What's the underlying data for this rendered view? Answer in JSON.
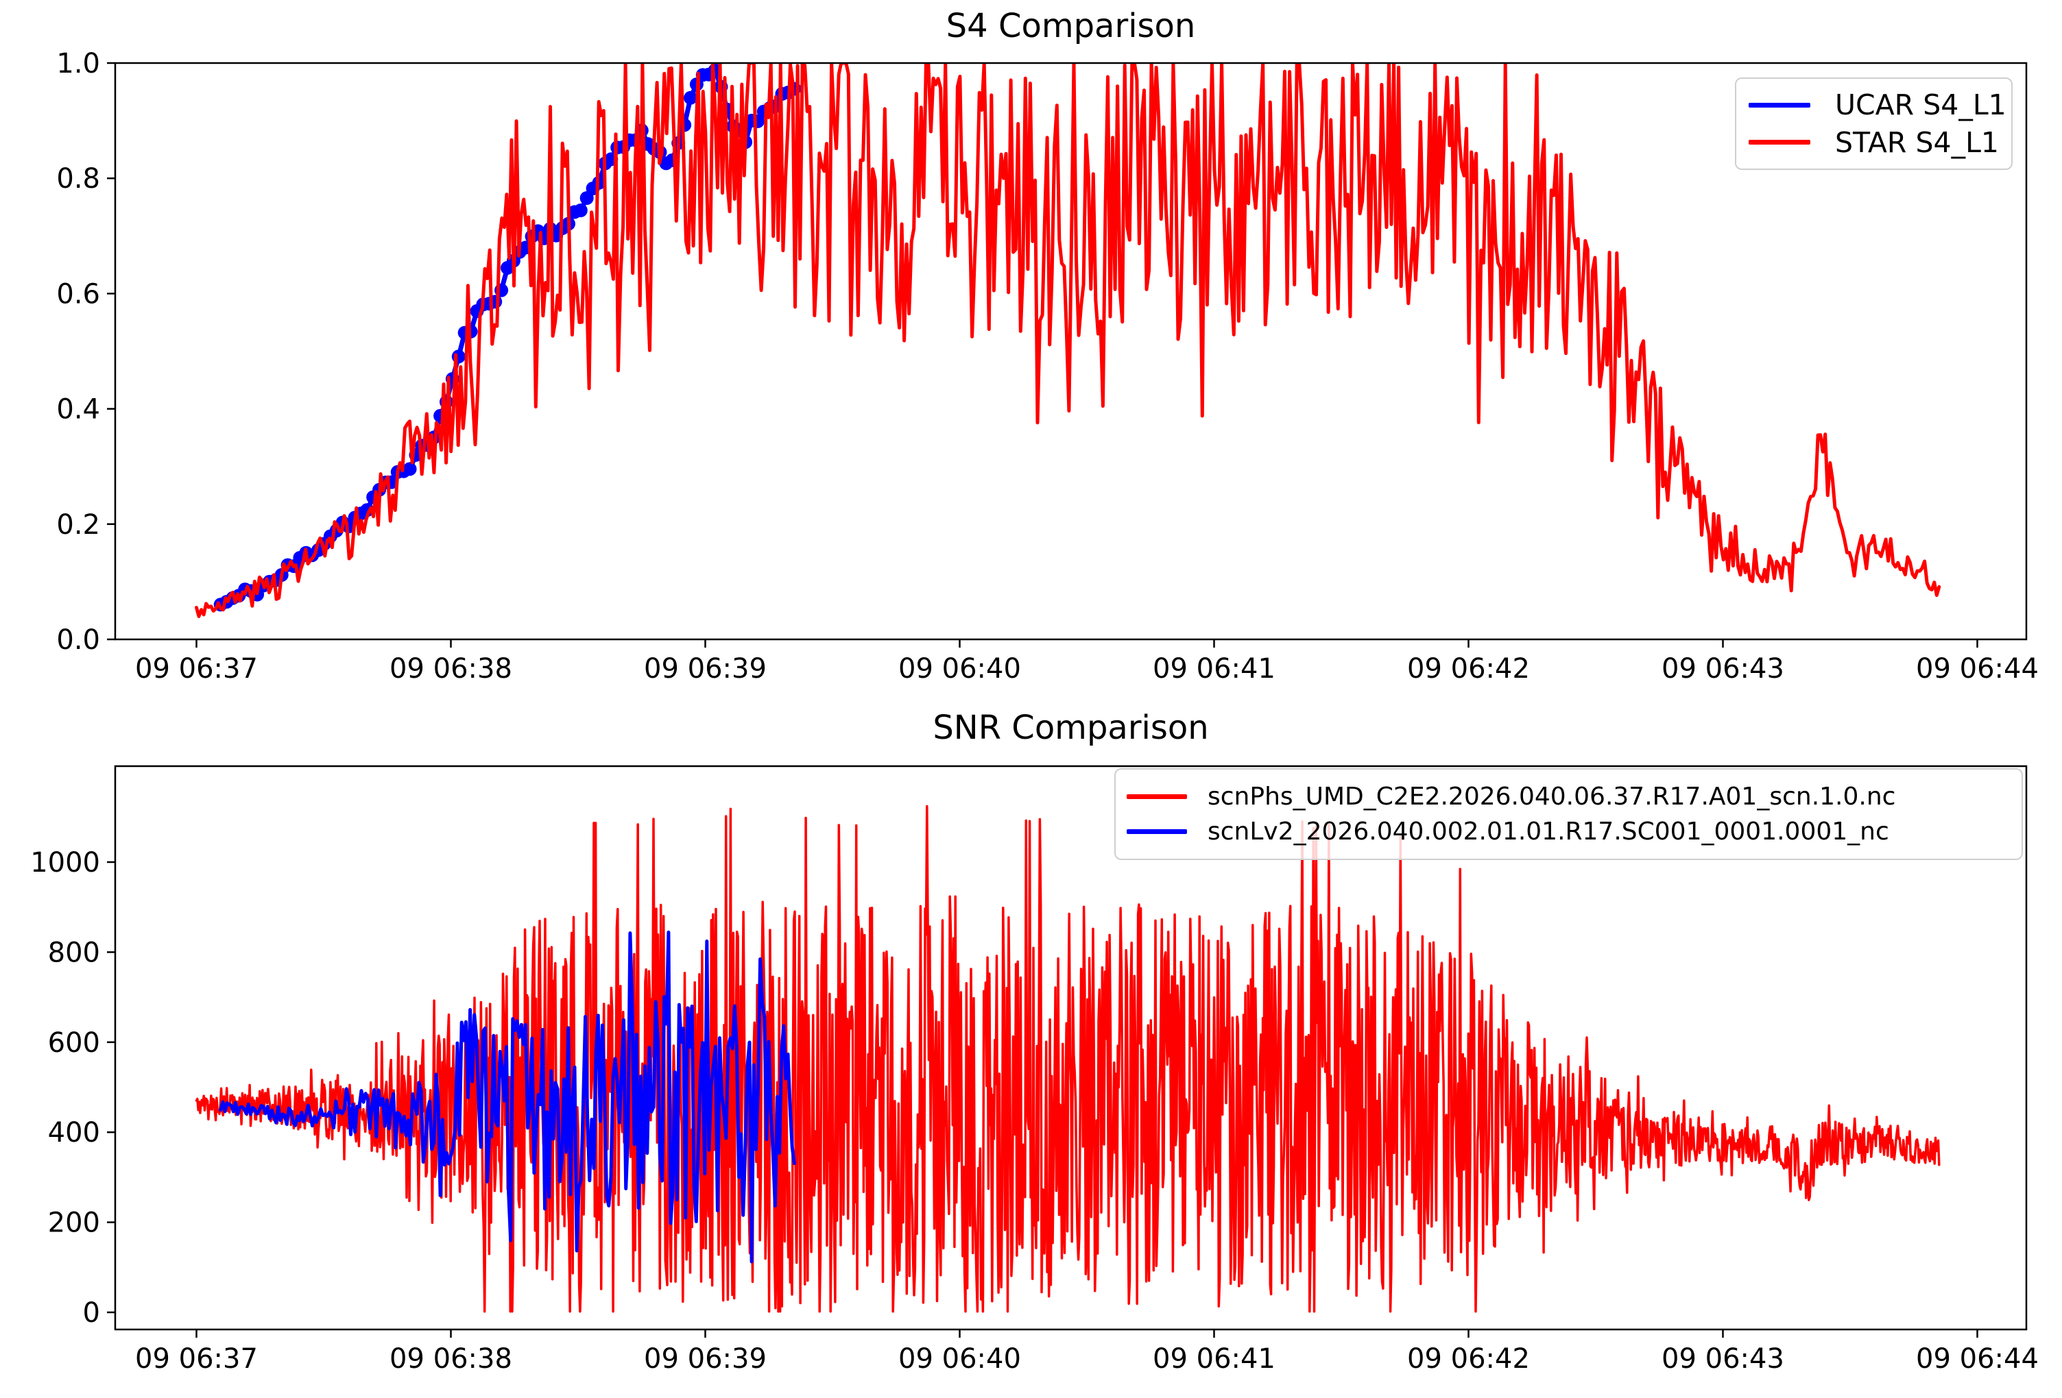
{
  "figure": {
    "background": "#ffffff",
    "axis_color": "#000000",
    "legend_border_color": "#cfcfcf"
  },
  "chart_data": [
    {
      "type": "line",
      "title": "S4 Comparison",
      "xlabel": "",
      "ylabel": "",
      "x_tick_labels": [
        "09 06:37",
        "09 06:38",
        "09 06:39",
        "09 06:40",
        "09 06:41",
        "09 06:42",
        "09 06:43",
        "09 06:44"
      ],
      "x_tick_minutes": [
        0,
        1,
        2,
        3,
        4,
        5,
        6,
        7
      ],
      "xlim_minutes": [
        -0.32,
        7.19
      ],
      "y_ticks": [
        0.0,
        0.2,
        0.4,
        0.6,
        0.8,
        1.0
      ],
      "y_tick_labels": [
        "0.0",
        "0.2",
        "0.4",
        "0.6",
        "0.8",
        "1.0"
      ],
      "ylim": [
        0.0,
        1.0
      ],
      "grid": false,
      "legend": {
        "position": "upper right",
        "entries": [
          {
            "label": "UCAR S4_L1",
            "color": "#0000ff"
          },
          {
            "label": "STAR S4_L1",
            "color": "#ff0000"
          }
        ]
      },
      "series": [
        {
          "name": "UCAR S4_L1",
          "color": "#0000ff",
          "line_width": 7,
          "marker": "circle",
          "marker_radius": 10,
          "seed": 11,
          "n_points": 95,
          "x_range": [
            0.095,
            2.35
          ],
          "clip": [
            0.0,
            1.0
          ],
          "trend": [
            [
              0.095,
              0.06
            ],
            [
              0.2,
              0.08
            ],
            [
              0.3,
              0.1
            ],
            [
              0.4,
              0.135
            ],
            [
              0.5,
              0.17
            ],
            [
              0.57,
              0.2
            ],
            [
              0.63,
              0.21
            ],
            [
              0.68,
              0.23
            ],
            [
              0.75,
              0.27
            ],
            [
              0.82,
              0.3
            ],
            [
              0.88,
              0.32
            ],
            [
              0.95,
              0.37
            ],
            [
              1.0,
              0.44
            ],
            [
              1.05,
              0.52
            ],
            [
              1.1,
              0.56
            ],
            [
              1.18,
              0.6
            ],
            [
              1.25,
              0.66
            ],
            [
              1.32,
              0.7
            ],
            [
              1.4,
              0.71
            ],
            [
              1.48,
              0.72
            ],
            [
              1.55,
              0.78
            ],
            [
              1.62,
              0.83
            ],
            [
              1.68,
              0.86
            ],
            [
              1.75,
              0.875
            ],
            [
              1.8,
              0.86
            ],
            [
              1.85,
              0.82
            ],
            [
              1.9,
              0.87
            ],
            [
              1.95,
              0.94
            ],
            [
              2.0,
              0.985
            ],
            [
              2.05,
              0.975
            ],
            [
              2.1,
              0.9
            ],
            [
              2.15,
              0.875
            ],
            [
              2.2,
              0.9
            ],
            [
              2.25,
              0.93
            ],
            [
              2.3,
              0.94
            ],
            [
              2.35,
              0.955
            ]
          ],
          "noise_amp": [
            [
              0.095,
              0.012
            ],
            [
              2.35,
              0.012
            ]
          ]
        },
        {
          "name": "STAR S4_L1",
          "color": "#ff0000",
          "line_width": 5,
          "marker": "none",
          "marker_radius": 0,
          "seed": 3,
          "n_points": 720,
          "x_range": [
            0.0,
            6.85
          ],
          "clip": [
            0.02,
            1.0
          ],
          "trend": [
            [
              0.0,
              0.05
            ],
            [
              0.15,
              0.07
            ],
            [
              0.3,
              0.1
            ],
            [
              0.45,
              0.14
            ],
            [
              0.6,
              0.18
            ],
            [
              0.75,
              0.25
            ],
            [
              0.9,
              0.32
            ],
            [
              1.0,
              0.4
            ],
            [
              1.1,
              0.5
            ],
            [
              1.2,
              0.68
            ],
            [
              1.28,
              0.78
            ],
            [
              1.35,
              0.6
            ],
            [
              1.42,
              0.72
            ],
            [
              1.5,
              0.7
            ],
            [
              1.6,
              0.74
            ],
            [
              1.7,
              0.78
            ],
            [
              1.8,
              0.8
            ],
            [
              1.9,
              0.84
            ],
            [
              2.0,
              0.8
            ],
            [
              2.2,
              0.84
            ],
            [
              2.4,
              0.8
            ],
            [
              2.7,
              0.78
            ],
            [
              3.0,
              0.8
            ],
            [
              3.3,
              0.76
            ],
            [
              3.6,
              0.8
            ],
            [
              3.9,
              0.78
            ],
            [
              4.2,
              0.8
            ],
            [
              4.5,
              0.78
            ],
            [
              4.7,
              0.82
            ],
            [
              4.9,
              0.78
            ],
            [
              5.1,
              0.7
            ],
            [
              5.3,
              0.66
            ],
            [
              5.5,
              0.6
            ],
            [
              5.65,
              0.45
            ],
            [
              5.8,
              0.32
            ],
            [
              5.95,
              0.2
            ],
            [
              6.05,
              0.14
            ],
            [
              6.15,
              0.12
            ],
            [
              6.25,
              0.12
            ],
            [
              6.32,
              0.18
            ],
            [
              6.37,
              0.32
            ],
            [
              6.42,
              0.28
            ],
            [
              6.48,
              0.16
            ],
            [
              6.55,
              0.14
            ],
            [
              6.62,
              0.17
            ],
            [
              6.7,
              0.13
            ],
            [
              6.78,
              0.11
            ],
            [
              6.85,
              0.09
            ]
          ],
          "noise_amp": [
            [
              0.0,
              0.012
            ],
            [
              0.2,
              0.018
            ],
            [
              0.4,
              0.03
            ],
            [
              0.6,
              0.045
            ],
            [
              0.8,
              0.06
            ],
            [
              1.0,
              0.09
            ],
            [
              1.15,
              0.13
            ],
            [
              1.3,
              0.17
            ],
            [
              1.45,
              0.2
            ],
            [
              1.6,
              0.22
            ],
            [
              1.8,
              0.22
            ],
            [
              2.0,
              0.24
            ],
            [
              2.3,
              0.27
            ],
            [
              2.6,
              0.28
            ],
            [
              3.0,
              0.3
            ],
            [
              3.4,
              0.28
            ],
            [
              3.8,
              0.3
            ],
            [
              4.2,
              0.28
            ],
            [
              4.6,
              0.26
            ],
            [
              4.9,
              0.24
            ],
            [
              5.1,
              0.26
            ],
            [
              5.35,
              0.22
            ],
            [
              5.6,
              0.16
            ],
            [
              5.8,
              0.1
            ],
            [
              6.0,
              0.045
            ],
            [
              6.2,
              0.03
            ],
            [
              6.37,
              0.05
            ],
            [
              6.5,
              0.03
            ],
            [
              6.7,
              0.025
            ],
            [
              6.85,
              0.02
            ]
          ]
        }
      ]
    },
    {
      "type": "line",
      "title": "SNR Comparison",
      "xlabel": "",
      "ylabel": "",
      "x_tick_labels": [
        "09 06:37",
        "09 06:38",
        "09 06:39",
        "09 06:40",
        "09 06:41",
        "09 06:42",
        "09 06:43",
        "09 06:44"
      ],
      "x_tick_minutes": [
        0,
        1,
        2,
        3,
        4,
        5,
        6,
        7
      ],
      "xlim_minutes": [
        -0.32,
        7.19
      ],
      "y_ticks": [
        0,
        200,
        400,
        600,
        800,
        1000
      ],
      "y_tick_labels": [
        "0",
        "200",
        "400",
        "600",
        "800",
        "1000"
      ],
      "ylim": [
        -38,
        1213
      ],
      "grid": false,
      "legend": {
        "position": "upper right",
        "entries": [
          {
            "label": "scnPhs_UMD_C2E2.2026.040.06.37.R17.A01_scn.1.0.nc",
            "color": "#ff0000"
          },
          {
            "label": "scnLv2_2026.040.002.01.01.R17.SC001_0001.0001_nc",
            "color": "#0000ff"
          }
        ]
      },
      "series": [
        {
          "name": "scnPhs_UMD_C2E2.2026.040.06.37.R17.A01_scn.1.0.nc",
          "color": "#ff0000",
          "line_width": 3.5,
          "marker": "none",
          "marker_radius": 0,
          "seed": 5,
          "n_points": 1900,
          "x_range": [
            0.0,
            6.85
          ],
          "clip": [
            2,
            1195
          ],
          "trend": [
            [
              0.0,
              462
            ],
            [
              0.3,
              458
            ],
            [
              0.6,
              452
            ],
            [
              0.9,
              445
            ],
            [
              1.2,
              460
            ],
            [
              1.5,
              480
            ],
            [
              1.8,
              465
            ],
            [
              2.1,
              475
            ],
            [
              2.4,
              455
            ],
            [
              2.7,
              470
            ],
            [
              3.0,
              475
            ],
            [
              3.3,
              460
            ],
            [
              3.6,
              470
            ],
            [
              3.9,
              455
            ],
            [
              4.2,
              465
            ],
            [
              4.5,
              470
            ],
            [
              4.8,
              455
            ],
            [
              5.0,
              440
            ],
            [
              5.2,
              420
            ],
            [
              5.45,
              415
            ],
            [
              5.65,
              400
            ],
            [
              5.85,
              385
            ],
            [
              6.05,
              370
            ],
            [
              6.2,
              375
            ],
            [
              6.34,
              310
            ],
            [
              6.38,
              380
            ],
            [
              6.5,
              370
            ],
            [
              6.65,
              378
            ],
            [
              6.85,
              362
            ]
          ],
          "noise_amp": [
            [
              0.0,
              22
            ],
            [
              0.2,
              32
            ],
            [
              0.4,
              55
            ],
            [
              0.6,
              85
            ],
            [
              0.8,
              130
            ],
            [
              0.95,
              190
            ],
            [
              1.05,
              280
            ],
            [
              1.15,
              350
            ],
            [
              1.25,
              400
            ],
            [
              1.4,
              440
            ],
            [
              1.6,
              460
            ],
            [
              1.8,
              465
            ],
            [
              2.0,
              470
            ],
            [
              2.3,
              475
            ],
            [
              2.6,
              465
            ],
            [
              2.9,
              475
            ],
            [
              3.2,
              460
            ],
            [
              3.5,
              470
            ],
            [
              3.8,
              470
            ],
            [
              4.1,
              465
            ],
            [
              4.4,
              455
            ],
            [
              4.7,
              445
            ],
            [
              4.9,
              420
            ],
            [
              5.05,
              360
            ],
            [
              5.15,
              290
            ],
            [
              5.3,
              210
            ],
            [
              5.45,
              150
            ],
            [
              5.6,
              105
            ],
            [
              5.75,
              75
            ],
            [
              5.9,
              55
            ],
            [
              6.05,
              48
            ],
            [
              6.2,
              42
            ],
            [
              6.35,
              75
            ],
            [
              6.5,
              45
            ],
            [
              6.65,
              42
            ],
            [
              6.85,
              38
            ]
          ]
        },
        {
          "name": "scnLv2_2026.040.002.01.01.R17.SC001_0001.0001_nc",
          "color": "#0000ff",
          "line_width": 5,
          "marker": "none",
          "marker_radius": 0,
          "seed": 9,
          "n_points": 270,
          "x_range": [
            0.095,
            2.35
          ],
          "clip": [
            45,
            1060
          ],
          "trend": [
            [
              0.095,
              458
            ],
            [
              0.2,
              448
            ],
            [
              0.35,
              438
            ],
            [
              0.5,
              432
            ],
            [
              0.65,
              442
            ],
            [
              0.8,
              430
            ],
            [
              0.9,
              425
            ],
            [
              1.0,
              445
            ],
            [
              1.05,
              540
            ],
            [
              1.12,
              460
            ],
            [
              1.2,
              445
            ],
            [
              1.3,
              475
            ],
            [
              1.4,
              430
            ],
            [
              1.5,
              455
            ],
            [
              1.6,
              435
            ],
            [
              1.7,
              490
            ],
            [
              1.8,
              450
            ],
            [
              1.9,
              465
            ],
            [
              2.0,
              450
            ],
            [
              2.1,
              475
            ],
            [
              2.2,
              445
            ],
            [
              2.3,
              465
            ],
            [
              2.35,
              450
            ]
          ],
          "noise_amp": [
            [
              0.095,
              14
            ],
            [
              0.25,
              18
            ],
            [
              0.45,
              28
            ],
            [
              0.6,
              45
            ],
            [
              0.75,
              70
            ],
            [
              0.9,
              100
            ],
            [
              1.0,
              150
            ],
            [
              1.1,
              190
            ],
            [
              1.25,
              220
            ],
            [
              1.4,
              235
            ],
            [
              1.55,
              240
            ],
            [
              1.7,
              265
            ],
            [
              1.85,
              285
            ],
            [
              2.0,
              275
            ],
            [
              2.15,
              260
            ],
            [
              2.3,
              235
            ],
            [
              2.35,
              200
            ]
          ]
        }
      ]
    }
  ]
}
